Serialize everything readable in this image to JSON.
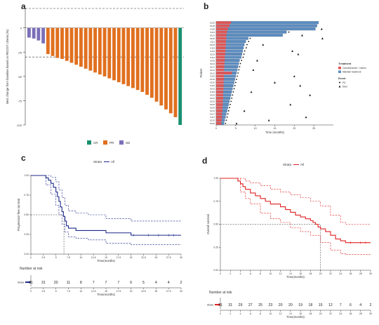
{
  "panels": {
    "a": {
      "letter": "a"
    },
    "b": {
      "letter": "b"
    },
    "c": {
      "letter": "c"
    },
    "d": {
      "letter": "d"
    }
  },
  "colors": {
    "CR": "#1a9070",
    "PR": "#e07020",
    "SD": "#7b6fb8",
    "camrelizumab": "#e05555",
    "maintenance": "#5b8cc0",
    "km_c": "#1c2a8a",
    "km_d": "#e02020"
  },
  "chart_data": [
    {
      "id": "a",
      "type": "bar",
      "ylabel": "Best change from baseline based on RECIST criteria (%)",
      "ylim": [
        -100,
        20
      ],
      "yticks": [
        0,
        -25,
        -50,
        -75,
        -100
      ],
      "reference_lines": [
        20,
        -30
      ],
      "legend": [
        {
          "label": "CR",
          "color": "#1a9070"
        },
        {
          "label": "PR",
          "color": "#e07020"
        },
        {
          "label": "SD",
          "color": "#7b6fb8"
        }
      ],
      "legend_position": "bottom",
      "values": [
        -10,
        -11,
        -13,
        -16,
        -27,
        -29,
        -31,
        -32,
        -34,
        -36,
        -38,
        -40,
        -42,
        -44,
        -46,
        -48,
        -50,
        -52,
        -54,
        -56,
        -58,
        -60,
        -62,
        -64,
        -66,
        -69,
        -72,
        -76,
        -80,
        -84,
        -88,
        -92,
        -100
      ],
      "response": [
        "SD",
        "SD",
        "SD",
        "SD",
        "PR",
        "PR",
        "PR",
        "PR",
        "PR",
        "PR",
        "PR",
        "PR",
        "PR",
        "PR",
        "PR",
        "PR",
        "PR",
        "PR",
        "PR",
        "PR",
        "PR",
        "PR",
        "PR",
        "PR",
        "PR",
        "PR",
        "PR",
        "PR",
        "PR",
        "PR",
        "PR",
        "PR",
        "CR"
      ]
    },
    {
      "id": "b",
      "type": "bar",
      "orientation": "horizontal",
      "xlabel": "Time (months)",
      "ylabel": "Patient",
      "xlim": [
        0,
        30
      ],
      "xticks": [
        0,
        5,
        10,
        15,
        20,
        25
      ],
      "patients": [
        "S125",
        "S128",
        "S118",
        "S113",
        "S101",
        "S126",
        "S111",
        "S108",
        "S119",
        "S112",
        "S129",
        "S114",
        "S106",
        "S124",
        "S127",
        "S131",
        "S121",
        "S116",
        "S120",
        "S130",
        "S110",
        "S102",
        "S115",
        "S104",
        "S122",
        "S103",
        "S105",
        "S109",
        "S123",
        "S107",
        "S117",
        "S132",
        "S100"
      ],
      "camrelizumab_months": [
        3.8,
        3.4,
        3.0,
        2.8,
        2.6,
        2.6,
        2.5,
        2.5,
        2.4,
        2.4,
        2.3,
        2.2,
        2.2,
        2.1,
        2.1,
        2.0,
        4.0,
        2.0,
        2.0,
        1.9,
        1.9,
        1.9,
        1.8,
        1.8,
        1.8,
        1.7,
        1.7,
        1.6,
        1.6,
        1.5,
        1.5,
        1.4,
        1.3
      ],
      "total_months": [
        26.2,
        25.8,
        25.4,
        18.0,
        17.0,
        8.2,
        7.6,
        7.2,
        7.0,
        6.8,
        6.6,
        6.4,
        6.0,
        5.8,
        5.6,
        5.4,
        5.2,
        5.0,
        4.8,
        4.6,
        4.4,
        4.2,
        4.0,
        3.8,
        3.6,
        3.4,
        3.2,
        3.0,
        2.8,
        2.6,
        2.4,
        2.2,
        2.0
      ],
      "pd_events": [
        {
          "patient": "S113",
          "time": 18.6
        },
        {
          "patient": "S126",
          "time": 8.7
        },
        {
          "patient": "S111",
          "time": 8.3
        },
        {
          "patient": "S108",
          "time": 7.9
        },
        {
          "patient": "S119",
          "time": 7.7
        },
        {
          "patient": "S112",
          "time": 7.3
        },
        {
          "patient": "S129",
          "time": 7.1
        },
        {
          "patient": "S114",
          "time": 6.9
        },
        {
          "patient": "S106",
          "time": 6.5
        },
        {
          "patient": "S124",
          "time": 6.2
        },
        {
          "patient": "S127",
          "time": 6.0
        },
        {
          "patient": "S131",
          "time": 5.8
        },
        {
          "patient": "S121",
          "time": 5.6
        },
        {
          "patient": "S116",
          "time": 5.4
        },
        {
          "patient": "S120",
          "time": 5.2
        },
        {
          "patient": "S130",
          "time": 5.0
        },
        {
          "patient": "S110",
          "time": 4.8
        },
        {
          "patient": "S102",
          "time": 4.6
        },
        {
          "patient": "S115",
          "time": 4.4
        },
        {
          "patient": "S104",
          "time": 4.2
        },
        {
          "patient": "S122",
          "time": 4.0
        },
        {
          "patient": "S103",
          "time": 3.8
        },
        {
          "patient": "S105",
          "time": 3.6
        },
        {
          "patient": "S109",
          "time": 3.4
        },
        {
          "patient": "S123",
          "time": 3.2
        },
        {
          "patient": "S107",
          "time": 3.0
        },
        {
          "patient": "S117",
          "time": 2.8
        },
        {
          "patient": "S132",
          "time": 2.6
        },
        {
          "patient": "S100",
          "time": 2.4
        }
      ],
      "death_events": [
        {
          "patient": "S118",
          "time": 27.0
        },
        {
          "patient": "S101",
          "time": 22.0
        },
        {
          "patient": "S126",
          "time": 27.2
        },
        {
          "patient": "S108",
          "time": 12.0
        },
        {
          "patient": "S112",
          "time": 19.5
        },
        {
          "patient": "S129",
          "time": 21.0
        },
        {
          "patient": "S106",
          "time": 10.5
        },
        {
          "patient": "S131",
          "time": 9.5
        },
        {
          "patient": "S116",
          "time": 20.0
        },
        {
          "patient": "S130",
          "time": 15.0
        },
        {
          "patient": "S110",
          "time": 21.5
        },
        {
          "patient": "S115",
          "time": 9.0
        },
        {
          "patient": "S104",
          "time": 24.0
        },
        {
          "patient": "S105",
          "time": 19.0
        },
        {
          "patient": "S123",
          "time": 7.2
        },
        {
          "patient": "S117",
          "time": 23.0
        },
        {
          "patient": "S132",
          "time": 13.5
        },
        {
          "patient": "S100",
          "time": 5.2
        }
      ],
      "legend_treatment_title": "Treatment",
      "legend_treatment": [
        "Camrelizumab + chemo",
        "Maintain treatment"
      ],
      "legend_event_title": "Event",
      "legend_event": [
        "PD",
        "Died"
      ],
      "legend_position": "right"
    },
    {
      "id": "c",
      "type": "line",
      "subtype": "kaplan-meier",
      "legend_title": "Strata",
      "legend_label": "All",
      "legend_position": "top",
      "xlabel": "Time(months)",
      "ylabel": "Progression-free survival",
      "xlim": [
        0,
        30
      ],
      "ylim": [
        0,
        1
      ],
      "xtick_labels": [
        "0",
        "2.5",
        "5",
        "7.5",
        "10",
        "12.5",
        "15",
        "17.5",
        "20",
        "22.5",
        "25",
        "27.5",
        "30"
      ],
      "ytick_labels": [
        "0.00",
        "0.25",
        "0.50",
        "0.75",
        "1.00"
      ],
      "median_reference": {
        "x": 6.6,
        "y": 0.5
      },
      "survival": {
        "times": [
          0,
          2.0,
          3.0,
          3.5,
          4.0,
          4.5,
          5.0,
          5.3,
          5.6,
          5.9,
          6.2,
          6.5,
          6.8,
          7.1,
          7.5,
          8.2,
          9.0,
          11.5,
          15.0,
          20.0,
          30.0
        ],
        "values": [
          1.0,
          1.0,
          0.97,
          0.94,
          0.9,
          0.85,
          0.79,
          0.73,
          0.67,
          0.6,
          0.54,
          0.48,
          0.42,
          0.36,
          0.33,
          0.33,
          0.3,
          0.3,
          0.27,
          0.24,
          0.24
        ]
      },
      "ci_upper": {
        "times": [
          0,
          2.0,
          3.0,
          4.0,
          5.0,
          5.6,
          6.2,
          6.8,
          7.5,
          9.0,
          11.5,
          15.0,
          20.0,
          30.0
        ],
        "values": [
          1.0,
          1.0,
          1.0,
          0.98,
          0.92,
          0.82,
          0.72,
          0.62,
          0.55,
          0.52,
          0.5,
          0.45,
          0.42,
          0.42
        ]
      },
      "ci_lower": {
        "times": [
          0,
          2.0,
          3.0,
          4.0,
          5.0,
          5.6,
          6.2,
          6.8,
          7.5,
          9.0,
          11.5,
          15.0,
          20.0,
          30.0
        ],
        "values": [
          1.0,
          1.0,
          0.88,
          0.76,
          0.62,
          0.5,
          0.38,
          0.28,
          0.22,
          0.2,
          0.18,
          0.14,
          0.12,
          0.12
        ]
      },
      "censor_times": [
        20.5,
        23.5,
        25.5,
        27.5,
        28.5
      ],
      "censor_value": 0.24,
      "risk_table": {
        "title": "Number at risk",
        "strata_label": "Strata",
        "xlabel": "Time(months)",
        "xtick_labels": [
          "0",
          "2.5",
          "5",
          "7.5",
          "10",
          "12.5",
          "15",
          "17.5",
          "20",
          "22.5",
          "25",
          "27.5",
          "30"
        ],
        "counts": [
          31,
          31,
          20,
          11,
          8,
          7,
          7,
          7,
          6,
          5,
          4,
          4,
          2
        ]
      }
    },
    {
      "id": "d",
      "type": "line",
      "subtype": "kaplan-meier",
      "legend_title": "Strata",
      "legend_label": "All",
      "legend_position": "top",
      "xlabel": "Time(months)",
      "ylabel": "Overall survival",
      "xlim": [
        0,
        30
      ],
      "ylim": [
        0,
        1
      ],
      "xtick_labels": [
        "0",
        "2",
        "4",
        "6",
        "8",
        "10",
        "12",
        "14",
        "16",
        "18",
        "20",
        "22",
        "24",
        "26",
        "28",
        "30"
      ],
      "ytick_labels": [
        "0.00",
        "0.25",
        "0.50",
        "0.75",
        "1.00"
      ],
      "median_reference": {
        "x": 20,
        "y": 0.5
      },
      "survival": {
        "times": [
          0,
          3.0,
          3.5,
          4.0,
          4.5,
          5.0,
          6.0,
          7.0,
          8.0,
          9.0,
          10.0,
          12.0,
          13.0,
          14.0,
          15.0,
          16.0,
          17.0,
          18.0,
          18.5,
          19.0,
          19.5,
          20.0,
          21.0,
          22.0,
          23.0,
          24.0,
          25.0,
          30.0
        ],
        "values": [
          1.0,
          1.0,
          0.97,
          0.94,
          0.91,
          0.88,
          0.84,
          0.81,
          0.78,
          0.75,
          0.72,
          0.69,
          0.66,
          0.63,
          0.6,
          0.58,
          0.56,
          0.54,
          0.52,
          0.5,
          0.47,
          0.45,
          0.42,
          0.38,
          0.34,
          0.32,
          0.3,
          0.3
        ]
      },
      "ci_upper": {
        "times": [
          0,
          3.0,
          4.0,
          5.0,
          6.0,
          8.0,
          10.0,
          12.0,
          14.0,
          16.0,
          18.0,
          20.0,
          22.0,
          24.0,
          25.0,
          30.0
        ],
        "values": [
          1.0,
          1.0,
          1.0,
          0.97,
          0.95,
          0.92,
          0.88,
          0.85,
          0.82,
          0.79,
          0.75,
          0.7,
          0.6,
          0.52,
          0.5,
          0.5
        ]
      },
      "ci_lower": {
        "times": [
          0,
          3.0,
          4.0,
          5.0,
          6.0,
          8.0,
          10.0,
          12.0,
          14.0,
          16.0,
          18.0,
          20.0,
          22.0,
          24.0,
          25.0,
          30.0
        ],
        "values": [
          1.0,
          1.0,
          0.85,
          0.78,
          0.72,
          0.62,
          0.56,
          0.52,
          0.46,
          0.42,
          0.38,
          0.3,
          0.22,
          0.18,
          0.17,
          0.17
        ]
      },
      "censor_times": [
        26,
        28,
        29
      ],
      "censor_value": 0.3,
      "risk_table": {
        "title": "Number at risk",
        "strata_label": "Strata",
        "xlabel": "Time(months)",
        "xtick_labels": [
          "0",
          "2",
          "4",
          "6",
          "8",
          "10",
          "12",
          "14",
          "16",
          "18",
          "20",
          "22",
          "24",
          "26",
          "28",
          "30"
        ],
        "counts": [
          31,
          31,
          29,
          27,
          25,
          23,
          20,
          20,
          19,
          18,
          15,
          12,
          7,
          6,
          4,
          2
        ]
      }
    }
  ]
}
